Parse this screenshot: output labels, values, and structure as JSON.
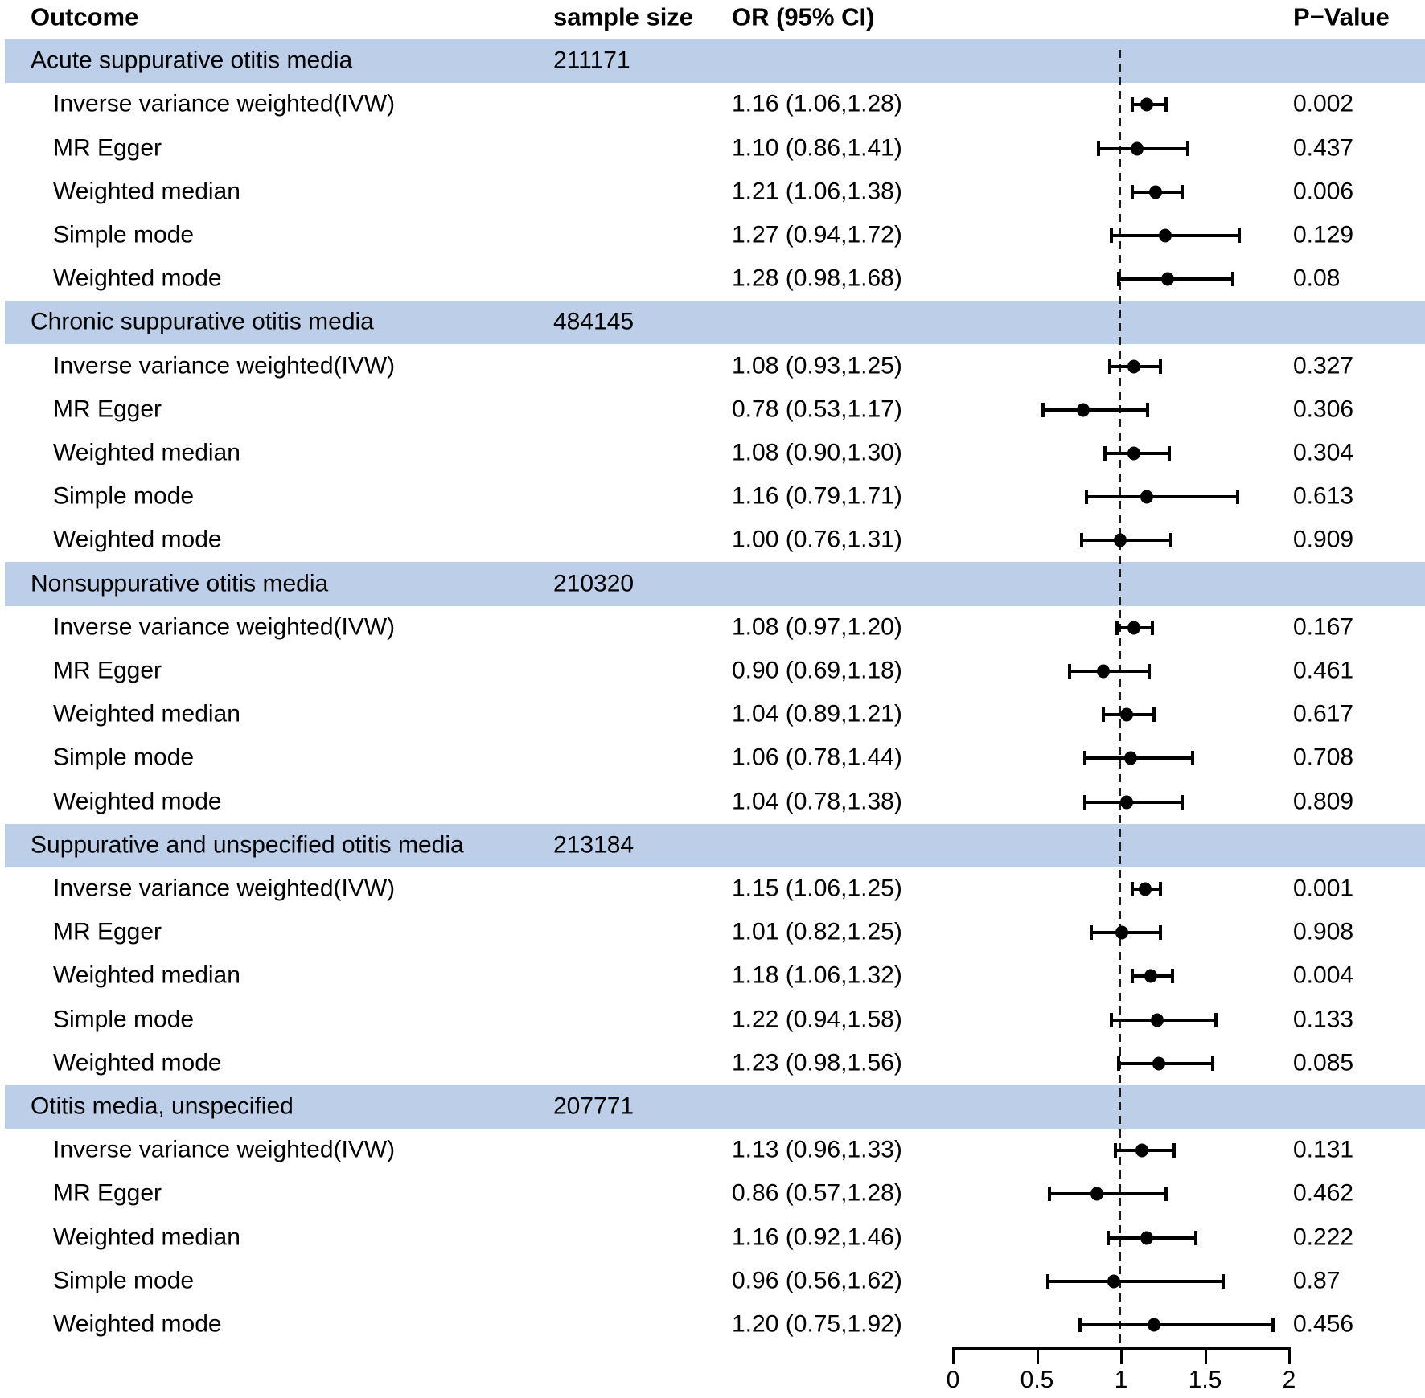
{
  "header": {
    "outcome": "Outcome",
    "sample_size": "sample size",
    "or_ci": "OR (95% CI)",
    "p_value": "P−Value"
  },
  "colors": {
    "band": "#bdcfe8",
    "text": "#000000",
    "marker": "#000000",
    "reference_line": "#1a1a1a"
  },
  "chart_data": {
    "type": "scatter",
    "subtype": "forest-plot",
    "title": "",
    "xlabel": "",
    "ylabel": "",
    "columns": [
      "Outcome",
      "sample size",
      "OR (95% CI)",
      "P−Value"
    ],
    "x_axis": {
      "range": [
        0,
        2
      ],
      "ticks": [
        0,
        0.5,
        1,
        1.5,
        2
      ],
      "tick_labels": [
        "0",
        "0.5",
        "1",
        "1.5",
        "2"
      ],
      "reference_line": 1,
      "position": "bottom"
    },
    "legend": "none",
    "grid": "off",
    "groups": [
      {
        "outcome": "Acute suppurative otitis media",
        "sample_size": "211171",
        "methods": [
          {
            "label": "Inverse variance weighted(IVW)",
            "or": 1.16,
            "ci_low": 1.06,
            "ci_high": 1.28,
            "or_text": "1.16 (1.06,1.28)",
            "p_value": "0.002"
          },
          {
            "label": "MR Egger",
            "or": 1.1,
            "ci_low": 0.86,
            "ci_high": 1.41,
            "or_text": "1.10 (0.86,1.41)",
            "p_value": "0.437"
          },
          {
            "label": "Weighted median",
            "or": 1.21,
            "ci_low": 1.06,
            "ci_high": 1.38,
            "or_text": "1.21 (1.06,1.38)",
            "p_value": "0.006"
          },
          {
            "label": "Simple mode",
            "or": 1.27,
            "ci_low": 0.94,
            "ci_high": 1.72,
            "or_text": "1.27 (0.94,1.72)",
            "p_value": "0.129"
          },
          {
            "label": "Weighted mode",
            "or": 1.28,
            "ci_low": 0.98,
            "ci_high": 1.68,
            "or_text": "1.28 (0.98,1.68)",
            "p_value": "0.08"
          }
        ]
      },
      {
        "outcome": "Chronic suppurative otitis media",
        "sample_size": "484145",
        "methods": [
          {
            "label": "Inverse variance weighted(IVW)",
            "or": 1.08,
            "ci_low": 0.93,
            "ci_high": 1.25,
            "or_text": "1.08 (0.93,1.25)",
            "p_value": "0.327"
          },
          {
            "label": "MR Egger",
            "or": 0.78,
            "ci_low": 0.53,
            "ci_high": 1.17,
            "or_text": "0.78 (0.53,1.17)",
            "p_value": "0.306"
          },
          {
            "label": "Weighted median",
            "or": 1.08,
            "ci_low": 0.9,
            "ci_high": 1.3,
            "or_text": "1.08 (0.90,1.30)",
            "p_value": "0.304"
          },
          {
            "label": "Simple mode",
            "or": 1.16,
            "ci_low": 0.79,
            "ci_high": 1.71,
            "or_text": "1.16 (0.79,1.71)",
            "p_value": "0.613"
          },
          {
            "label": "Weighted mode",
            "or": 1.0,
            "ci_low": 0.76,
            "ci_high": 1.31,
            "or_text": "1.00 (0.76,1.31)",
            "p_value": "0.909"
          }
        ]
      },
      {
        "outcome": "Nonsuppurative otitis media",
        "sample_size": "210320",
        "methods": [
          {
            "label": "Inverse variance weighted(IVW)",
            "or": 1.08,
            "ci_low": 0.97,
            "ci_high": 1.2,
            "or_text": "1.08 (0.97,1.20)",
            "p_value": "0.167"
          },
          {
            "label": "MR Egger",
            "or": 0.9,
            "ci_low": 0.69,
            "ci_high": 1.18,
            "or_text": "0.90 (0.69,1.18)",
            "p_value": "0.461"
          },
          {
            "label": "Weighted median",
            "or": 1.04,
            "ci_low": 0.89,
            "ci_high": 1.21,
            "or_text": "1.04 (0.89,1.21)",
            "p_value": "0.617"
          },
          {
            "label": "Simple mode",
            "or": 1.06,
            "ci_low": 0.78,
            "ci_high": 1.44,
            "or_text": "1.06 (0.78,1.44)",
            "p_value": "0.708"
          },
          {
            "label": "Weighted mode",
            "or": 1.04,
            "ci_low": 0.78,
            "ci_high": 1.38,
            "or_text": "1.04 (0.78,1.38)",
            "p_value": "0.809"
          }
        ]
      },
      {
        "outcome": "Suppurative and unspecified otitis media",
        "sample_size": "213184",
        "methods": [
          {
            "label": "Inverse variance weighted(IVW)",
            "or": 1.15,
            "ci_low": 1.06,
            "ci_high": 1.25,
            "or_text": "1.15 (1.06,1.25)",
            "p_value": "0.001"
          },
          {
            "label": "MR Egger",
            "or": 1.01,
            "ci_low": 0.82,
            "ci_high": 1.25,
            "or_text": "1.01 (0.82,1.25)",
            "p_value": "0.908"
          },
          {
            "label": "Weighted median",
            "or": 1.18,
            "ci_low": 1.06,
            "ci_high": 1.32,
            "or_text": "1.18 (1.06,1.32)",
            "p_value": "0.004"
          },
          {
            "label": "Simple mode",
            "or": 1.22,
            "ci_low": 0.94,
            "ci_high": 1.58,
            "or_text": "1.22 (0.94,1.58)",
            "p_value": "0.133"
          },
          {
            "label": "Weighted mode",
            "or": 1.23,
            "ci_low": 0.98,
            "ci_high": 1.56,
            "or_text": "1.23 (0.98,1.56)",
            "p_value": "0.085"
          }
        ]
      },
      {
        "outcome": "Otitis media, unspecified",
        "sample_size": "207771",
        "methods": [
          {
            "label": "Inverse variance weighted(IVW)",
            "or": 1.13,
            "ci_low": 0.96,
            "ci_high": 1.33,
            "or_text": "1.13 (0.96,1.33)",
            "p_value": "0.131"
          },
          {
            "label": "MR Egger",
            "or": 0.86,
            "ci_low": 0.57,
            "ci_high": 1.28,
            "or_text": "0.86 (0.57,1.28)",
            "p_value": "0.462"
          },
          {
            "label": "Weighted median",
            "or": 1.16,
            "ci_low": 0.92,
            "ci_high": 1.46,
            "or_text": "1.16 (0.92,1.46)",
            "p_value": "0.222"
          },
          {
            "label": "Simple mode",
            "or": 0.96,
            "ci_low": 0.56,
            "ci_high": 1.62,
            "or_text": "0.96 (0.56,1.62)",
            "p_value": "0.87"
          },
          {
            "label": "Weighted mode",
            "or": 1.2,
            "ci_low": 0.75,
            "ci_high": 1.92,
            "or_text": "1.20 (0.75,1.92)",
            "p_value": "0.456"
          }
        ]
      }
    ]
  }
}
